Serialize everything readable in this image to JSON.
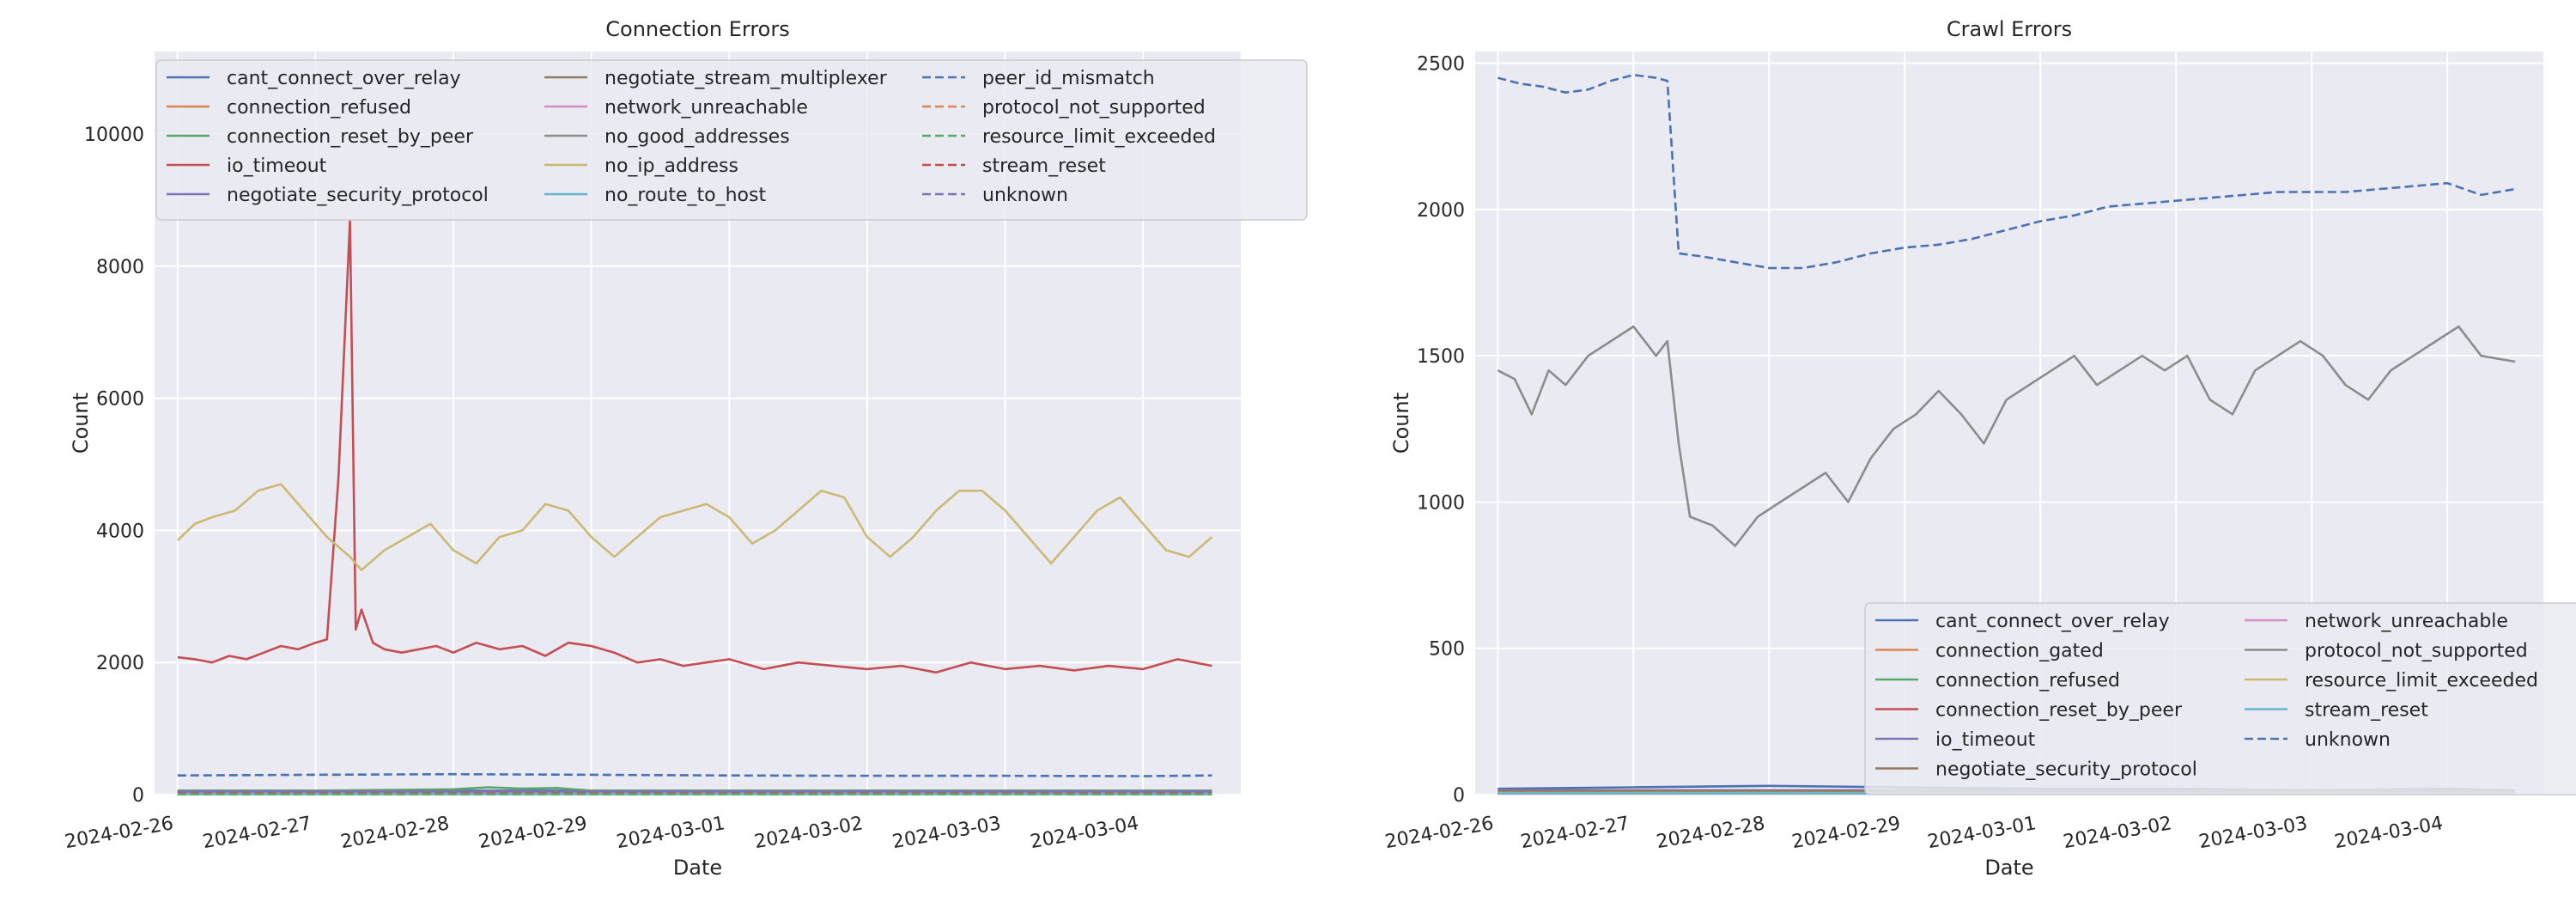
{
  "chart_data": [
    {
      "type": "line",
      "title": "Connection Errors",
      "xlabel": "Date",
      "ylabel": "Count",
      "xlim": [
        "2024-02-25T20:00",
        "2024-03-04T17:00"
      ],
      "ylim": [
        0,
        11250
      ],
      "x_ticks": [
        "2024-02-26",
        "2024-02-27",
        "2024-02-28",
        "2024-02-29",
        "2024-03-01",
        "2024-03-02",
        "2024-03-03",
        "2024-03-04"
      ],
      "y_ticks": [
        "0",
        "2000",
        "4000",
        "6000",
        "8000",
        "10000"
      ],
      "y_tick_values": [
        0,
        2000,
        4000,
        6000,
        8000,
        10000
      ],
      "legend": {
        "loc": "upper center",
        "ncol": 3
      },
      "grid": true,
      "series": [
        {
          "name": "cant_connect_over_relay",
          "color": "#4c72b0",
          "dash": false,
          "x": [
            "2024-02-26T00:00",
            "2024-03-04T12:00"
          ],
          "y": [
            60,
            60
          ]
        },
        {
          "name": "connection_refused",
          "color": "#dd8452",
          "dash": false,
          "x": [
            "2024-02-26T00:00",
            "2024-03-04T12:00"
          ],
          "y": [
            25,
            25
          ]
        },
        {
          "name": "connection_reset_by_peer",
          "color": "#55a868",
          "dash": false,
          "x": [
            "2024-02-26T00:00",
            "2024-02-27T00:00",
            "2024-02-28T00:00",
            "2024-02-28T06:00",
            "2024-02-28T12:00",
            "2024-02-28T18:00",
            "2024-02-29T00:00",
            "2024-03-04T12:00"
          ],
          "y": [
            60,
            60,
            80,
            110,
            90,
            100,
            60,
            60
          ]
        },
        {
          "name": "io_timeout",
          "color": "#c44e52",
          "dash": false,
          "x": [
            "2024-02-26T00:00",
            "2024-02-26T03:00",
            "2024-02-26T06:00",
            "2024-02-26T09:00",
            "2024-02-26T12:00",
            "2024-02-26T15:00",
            "2024-02-26T18:00",
            "2024-02-26T21:00",
            "2024-02-27T00:00",
            "2024-02-27T02:00",
            "2024-02-27T04:00",
            "2024-02-27T06:00",
            "2024-02-27T07:00",
            "2024-02-27T08:00",
            "2024-02-27T10:00",
            "2024-02-27T12:00",
            "2024-02-27T15:00",
            "2024-02-27T18:00",
            "2024-02-27T21:00",
            "2024-02-28T00:00",
            "2024-02-28T04:00",
            "2024-02-28T08:00",
            "2024-02-28T12:00",
            "2024-02-28T16:00",
            "2024-02-28T20:00",
            "2024-02-29T00:00",
            "2024-02-29T04:00",
            "2024-02-29T08:00",
            "2024-02-29T12:00",
            "2024-02-29T16:00",
            "2024-02-29T20:00",
            "2024-03-01T00:00",
            "2024-03-01T06:00",
            "2024-03-01T12:00",
            "2024-03-01T18:00",
            "2024-03-02T00:00",
            "2024-03-02T06:00",
            "2024-03-02T12:00",
            "2024-03-02T18:00",
            "2024-03-03T00:00",
            "2024-03-03T06:00",
            "2024-03-03T12:00",
            "2024-03-03T18:00",
            "2024-03-04T00:00",
            "2024-03-04T06:00",
            "2024-03-04T12:00"
          ],
          "y": [
            2080,
            2050,
            2000,
            2100,
            2050,
            2150,
            2250,
            2200,
            2300,
            2350,
            4800,
            8700,
            2500,
            2800,
            2300,
            2200,
            2150,
            2200,
            2250,
            2150,
            2300,
            2200,
            2250,
            2100,
            2300,
            2250,
            2150,
            2000,
            2050,
            1950,
            2000,
            2050,
            1900,
            2000,
            1950,
            1900,
            1950,
            1850,
            2000,
            1900,
            1950,
            1880,
            1950,
            1900,
            2050,
            1950
          ]
        },
        {
          "name": "negotiate_security_protocol",
          "color": "#8172b3",
          "dash": false,
          "x": [
            "2024-02-26T00:00",
            "2024-03-04T12:00"
          ],
          "y": [
            45,
            45
          ]
        },
        {
          "name": "negotiate_stream_multiplexer",
          "color": "#937860",
          "dash": false,
          "x": [
            "2024-02-26T00:00",
            "2024-03-04T12:00"
          ],
          "y": [
            10,
            10
          ]
        },
        {
          "name": "network_unreachable",
          "color": "#da8bc3",
          "dash": false,
          "x": [
            "2024-02-26T00:00",
            "2024-03-04T12:00"
          ],
          "y": [
            20,
            20
          ]
        },
        {
          "name": "no_good_addresses",
          "color": "#8c8c8c",
          "dash": false,
          "x": [
            "2024-02-26T00:00",
            "2024-03-04T12:00"
          ],
          "y": [
            15,
            15
          ]
        },
        {
          "name": "no_ip_address",
          "color": "#ccb974",
          "dash": false,
          "x": [
            "2024-02-26T00:00",
            "2024-02-26T03:00",
            "2024-02-26T06:00",
            "2024-02-26T10:00",
            "2024-02-26T14:00",
            "2024-02-26T18:00",
            "2024-02-26T22:00",
            "2024-02-27T02:00",
            "2024-02-27T06:00",
            "2024-02-27T08:00",
            "2024-02-27T12:00",
            "2024-02-27T16:00",
            "2024-02-27T20:00",
            "2024-02-28T00:00",
            "2024-02-28T04:00",
            "2024-02-28T08:00",
            "2024-02-28T12:00",
            "2024-02-28T16:00",
            "2024-02-28T20:00",
            "2024-02-29T00:00",
            "2024-02-29T04:00",
            "2024-02-29T08:00",
            "2024-02-29T12:00",
            "2024-02-29T16:00",
            "2024-02-29T20:00",
            "2024-03-01T00:00",
            "2024-03-01T04:00",
            "2024-03-01T08:00",
            "2024-03-01T12:00",
            "2024-03-01T16:00",
            "2024-03-01T20:00",
            "2024-03-02T00:00",
            "2024-03-02T04:00",
            "2024-03-02T08:00",
            "2024-03-02T12:00",
            "2024-03-02T16:00",
            "2024-03-02T20:00",
            "2024-03-03T00:00",
            "2024-03-03T04:00",
            "2024-03-03T08:00",
            "2024-03-03T12:00",
            "2024-03-03T16:00",
            "2024-03-03T20:00",
            "2024-03-04T00:00",
            "2024-03-04T04:00",
            "2024-03-04T08:00",
            "2024-03-04T12:00"
          ],
          "y": [
            3850,
            4100,
            4200,
            4300,
            4600,
            4700,
            4300,
            3900,
            3600,
            3400,
            3700,
            3900,
            4100,
            3700,
            3500,
            3900,
            4000,
            4400,
            4300,
            3900,
            3600,
            3900,
            4200,
            4300,
            4400,
            4200,
            3800,
            4000,
            4300,
            4600,
            4500,
            3900,
            3600,
            3900,
            4300,
            4600,
            4600,
            4300,
            3900,
            3500,
            3900,
            4300,
            4500,
            4100,
            3700,
            3600,
            3900
          ]
        },
        {
          "name": "no_route_to_host",
          "color": "#64b5cd",
          "dash": false,
          "x": [
            "2024-02-26T00:00",
            "2024-03-04T12:00"
          ],
          "y": [
            5,
            5
          ]
        },
        {
          "name": "peer_id_mismatch",
          "color": "#4c72b0",
          "dash": true,
          "x": [
            "2024-02-26T00:00",
            "2024-02-27T00:00",
            "2024-02-28T00:00",
            "2024-02-29T00:00",
            "2024-03-01T00:00",
            "2024-03-02T00:00",
            "2024-03-03T00:00",
            "2024-03-04T00:00",
            "2024-03-04T12:00"
          ],
          "y": [
            290,
            300,
            310,
            300,
            290,
            285,
            285,
            280,
            290
          ]
        },
        {
          "name": "protocol_not_supported",
          "color": "#dd8452",
          "dash": true,
          "x": [
            "2024-02-26T00:00",
            "2024-03-04T12:00"
          ],
          "y": [
            30,
            30
          ]
        },
        {
          "name": "resource_limit_exceeded",
          "color": "#55a868",
          "dash": true,
          "x": [
            "2024-02-26T00:00",
            "2024-03-04T12:00"
          ],
          "y": [
            5,
            5
          ]
        },
        {
          "name": "stream_reset",
          "color": "#c44e52",
          "dash": true,
          "x": [
            "2024-02-26T00:00",
            "2024-03-04T12:00"
          ],
          "y": [
            40,
            40
          ]
        },
        {
          "name": "unknown",
          "color": "#8172b3",
          "dash": true,
          "x": [
            "2024-02-26T00:00",
            "2024-03-04T12:00"
          ],
          "y": [
            50,
            50
          ]
        }
      ]
    },
    {
      "type": "line",
      "title": "Crawl Errors",
      "xlabel": "Date",
      "ylabel": "Count",
      "xlim": [
        "2024-02-25T20:00",
        "2024-03-04T17:00"
      ],
      "ylim": [
        0,
        2540
      ],
      "x_ticks": [
        "2024-02-26",
        "2024-02-27",
        "2024-02-28",
        "2024-02-29",
        "2024-03-01",
        "2024-03-02",
        "2024-03-03",
        "2024-03-04"
      ],
      "y_ticks": [
        "0",
        "500",
        "1000",
        "1500",
        "2000",
        "2500"
      ],
      "y_tick_values": [
        0,
        500,
        1000,
        1500,
        2000,
        2500
      ],
      "legend": {
        "loc": "lower right",
        "ncol": 2
      },
      "grid": true,
      "series": [
        {
          "name": "cant_connect_over_relay",
          "color": "#4c72b0",
          "dash": false,
          "x": [
            "2024-02-26T00:00",
            "2024-02-27T00:00",
            "2024-02-28T00:00",
            "2024-02-29T00:00",
            "2024-03-01T00:00",
            "2024-03-02T00:00",
            "2024-03-03T00:00",
            "2024-03-04T00:00",
            "2024-03-04T12:00"
          ],
          "y": [
            20,
            25,
            30,
            25,
            20,
            20,
            15,
            20,
            15
          ]
        },
        {
          "name": "connection_gated",
          "color": "#dd8452",
          "dash": false,
          "x": [
            "2024-02-26T00:00",
            "2024-03-04T12:00"
          ],
          "y": [
            5,
            5
          ]
        },
        {
          "name": "connection_refused",
          "color": "#55a868",
          "dash": false,
          "x": [
            "2024-02-26T00:00",
            "2024-03-04T12:00"
          ],
          "y": [
            10,
            10
          ]
        },
        {
          "name": "connection_reset_by_peer",
          "color": "#c44e52",
          "dash": false,
          "x": [
            "2024-02-26T00:00",
            "2024-03-04T12:00"
          ],
          "y": [
            8,
            8
          ]
        },
        {
          "name": "io_timeout",
          "color": "#8172b3",
          "dash": false,
          "x": [
            "2024-02-26T00:00",
            "2024-03-04T12:00"
          ],
          "y": [
            15,
            15
          ]
        },
        {
          "name": "negotiate_security_protocol",
          "color": "#937860",
          "dash": false,
          "x": [
            "2024-02-26T00:00",
            "2024-03-04T12:00"
          ],
          "y": [
            12,
            12
          ]
        },
        {
          "name": "network_unreachable",
          "color": "#da8bc3",
          "dash": false,
          "x": [
            "2024-02-26T00:00",
            "2024-03-04T12:00"
          ],
          "y": [
            3,
            3
          ]
        },
        {
          "name": "protocol_not_supported",
          "color": "#8c8c8c",
          "dash": false,
          "x": [
            "2024-02-26T00:00",
            "2024-02-26T03:00",
            "2024-02-26T06:00",
            "2024-02-26T09:00",
            "2024-02-26T12:00",
            "2024-02-26T16:00",
            "2024-02-26T20:00",
            "2024-02-27T00:00",
            "2024-02-27T02:00",
            "2024-02-27T04:00",
            "2024-02-27T06:00",
            "2024-02-27T08:00",
            "2024-02-27T10:00",
            "2024-02-27T14:00",
            "2024-02-27T18:00",
            "2024-02-27T22:00",
            "2024-02-28T02:00",
            "2024-02-28T06:00",
            "2024-02-28T10:00",
            "2024-02-28T14:00",
            "2024-02-28T18:00",
            "2024-02-28T22:00",
            "2024-02-29T02:00",
            "2024-02-29T06:00",
            "2024-02-29T10:00",
            "2024-02-29T14:00",
            "2024-02-29T18:00",
            "2024-02-29T22:00",
            "2024-03-01T02:00",
            "2024-03-01T06:00",
            "2024-03-01T10:00",
            "2024-03-01T14:00",
            "2024-03-01T18:00",
            "2024-03-01T22:00",
            "2024-03-02T02:00",
            "2024-03-02T06:00",
            "2024-03-02T10:00",
            "2024-03-02T14:00",
            "2024-03-02T18:00",
            "2024-03-02T22:00",
            "2024-03-03T02:00",
            "2024-03-03T06:00",
            "2024-03-03T10:00",
            "2024-03-03T14:00",
            "2024-03-03T18:00",
            "2024-03-03T22:00",
            "2024-03-04T02:00",
            "2024-03-04T06:00",
            "2024-03-04T12:00"
          ],
          "y": [
            1450,
            1420,
            1300,
            1450,
            1400,
            1500,
            1550,
            1600,
            1550,
            1500,
            1550,
            1200,
            950,
            920,
            850,
            950,
            1000,
            1050,
            1100,
            1000,
            1150,
            1250,
            1300,
            1380,
            1300,
            1200,
            1350,
            1400,
            1450,
            1500,
            1400,
            1450,
            1500,
            1450,
            1500,
            1350,
            1300,
            1450,
            1500,
            1550,
            1500,
            1400,
            1350,
            1450,
            1500,
            1550,
            1600,
            1500,
            1480
          ]
        },
        {
          "name": "resource_limit_exceeded",
          "color": "#ccb974",
          "dash": false,
          "x": [
            "2024-02-26T00:00",
            "2024-03-04T12:00"
          ],
          "y": [
            6,
            6
          ]
        },
        {
          "name": "stream_reset",
          "color": "#64b5cd",
          "dash": false,
          "x": [
            "2024-02-26T00:00",
            "2024-03-04T12:00"
          ],
          "y": [
            4,
            4
          ]
        },
        {
          "name": "unknown",
          "color": "#4c72b0",
          "dash": true,
          "x": [
            "2024-02-26T00:00",
            "2024-02-26T04:00",
            "2024-02-26T08:00",
            "2024-02-26T12:00",
            "2024-02-26T16:00",
            "2024-02-26T20:00",
            "2024-02-27T00:00",
            "2024-02-27T04:00",
            "2024-02-27T06:00",
            "2024-02-27T08:00",
            "2024-02-27T12:00",
            "2024-02-27T18:00",
            "2024-02-28T00:00",
            "2024-02-28T06:00",
            "2024-02-28T12:00",
            "2024-02-28T18:00",
            "2024-02-29T00:00",
            "2024-02-29T06:00",
            "2024-02-29T12:00",
            "2024-02-29T18:00",
            "2024-03-01T00:00",
            "2024-03-01T06:00",
            "2024-03-01T12:00",
            "2024-03-01T18:00",
            "2024-03-02T00:00",
            "2024-03-02T06:00",
            "2024-03-02T12:00",
            "2024-03-02T18:00",
            "2024-03-03T00:00",
            "2024-03-03T06:00",
            "2024-03-03T12:00",
            "2024-03-03T18:00",
            "2024-03-04T00:00",
            "2024-03-04T06:00",
            "2024-03-04T12:00"
          ],
          "y": [
            2450,
            2430,
            2420,
            2400,
            2410,
            2440,
            2460,
            2450,
            2440,
            1850,
            1840,
            1820,
            1800,
            1800,
            1820,
            1850,
            1870,
            1880,
            1900,
            1930,
            1960,
            1980,
            2010,
            2020,
            2030,
            2040,
            2050,
            2060,
            2060,
            2060,
            2070,
            2080,
            2090,
            2050,
            2070
          ]
        }
      ]
    }
  ]
}
